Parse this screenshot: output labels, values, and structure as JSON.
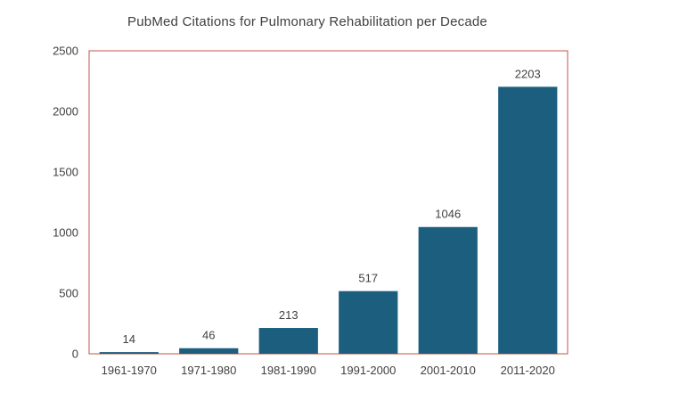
{
  "chart_data": {
    "type": "bar",
    "title": "PubMed Citations for Pulmonary Rehabilitation per Decade",
    "categories": [
      "1961-1970",
      "1971-1980",
      "1981-1990",
      "1991-2000",
      "2001-2010",
      "2011-2020"
    ],
    "values": [
      14,
      46,
      213,
      517,
      1046,
      2203
    ],
    "data_labels": [
      "14",
      "46",
      "213",
      "517",
      "1046",
      "2203"
    ],
    "yticks": [
      "0",
      "500",
      "1000",
      "1500",
      "2000",
      "2500"
    ],
    "ylim": [
      0,
      2500
    ],
    "xlabel": "",
    "ylabel": "",
    "grid": false,
    "legend": "none",
    "bar_color": "#1b5e7e",
    "frame_color": "#c0504d"
  }
}
